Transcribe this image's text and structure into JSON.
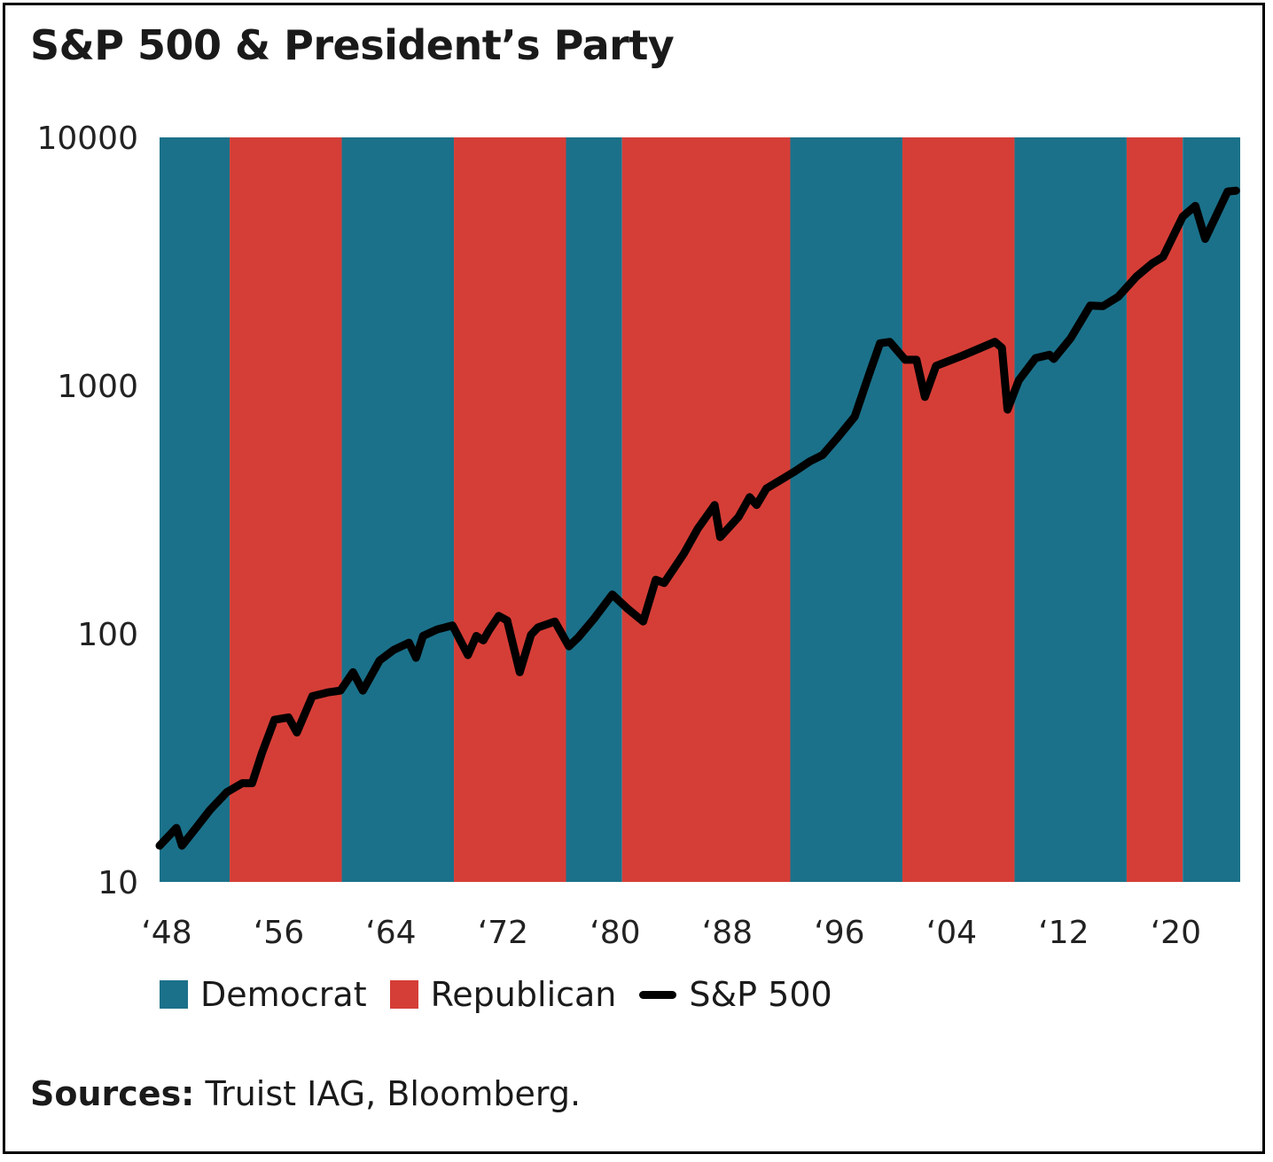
{
  "title": "S&P 500 & President’s Party",
  "sources_label": "Sources:",
  "sources_text": " Truist IAG, Bloomberg.",
  "colors": {
    "democrat": "#1b718a",
    "republican": "#d53e37",
    "line": "#000000"
  },
  "chart_data": {
    "type": "line",
    "title": "S&P 500 & President’s Party",
    "y_scale": "log",
    "ylim": [
      10,
      10000
    ],
    "y_ticks": [
      10,
      100,
      1000,
      10000
    ],
    "y_tick_labels": [
      "10",
      "100",
      "1000",
      "10000"
    ],
    "xlim": [
      1948,
      2025.1
    ],
    "x_ticks": [
      1948,
      1956,
      1964,
      1972,
      1980,
      1988,
      1996,
      2004,
      2012,
      2020
    ],
    "x_tick_labels": [
      "‘48",
      "‘56",
      "‘64",
      "‘72",
      "‘80",
      "‘88",
      "‘96",
      "‘04",
      "‘12",
      "‘20"
    ],
    "legend": [
      "Democrat",
      "Republican",
      "S&P 500"
    ],
    "legend_position": "bottom",
    "party_periods": [
      {
        "party": "Democrat",
        "start": 1948,
        "end": 1953
      },
      {
        "party": "Republican",
        "start": 1953,
        "end": 1961
      },
      {
        "party": "Democrat",
        "start": 1961,
        "end": 1969
      },
      {
        "party": "Republican",
        "start": 1969,
        "end": 1977
      },
      {
        "party": "Democrat",
        "start": 1977,
        "end": 1981
      },
      {
        "party": "Republican",
        "start": 1981,
        "end": 1993
      },
      {
        "party": "Democrat",
        "start": 1993,
        "end": 2001
      },
      {
        "party": "Republican",
        "start": 2001,
        "end": 2009
      },
      {
        "party": "Democrat",
        "start": 2009,
        "end": 2017
      },
      {
        "party": "Republican",
        "start": 2017,
        "end": 2021
      },
      {
        "party": "Democrat",
        "start": 2021,
        "end": 2025.1
      }
    ],
    "series": [
      {
        "name": "S&P 500",
        "x": [
          1948,
          1949.2,
          1949.6,
          1950.6,
          1951.6,
          1952.8,
          1953.9,
          1954.6,
          1955.3,
          1956.2,
          1957.2,
          1957.8,
          1958.9,
          1960.0,
          1960.9,
          1961.8,
          1962.5,
          1963.7,
          1964.7,
          1965.8,
          1966.3,
          1966.8,
          1967.8,
          1968.9,
          1970.0,
          1970.6,
          1971.1,
          1971.5,
          1972.2,
          1972.8,
          1973.7,
          1974.5,
          1975.0,
          1976.2,
          1977.2,
          1977.9,
          1979.0,
          1980.3,
          1981.4,
          1982.5,
          1983.4,
          1984.0,
          1985.4,
          1986.4,
          1987.6,
          1988.0,
          1989.3,
          1990.1,
          1990.6,
          1991.3,
          1993.3,
          1994.4,
          1995.3,
          1996.3,
          1997.6,
          1998.6,
          1999.4,
          2000.1,
          2001.2,
          2002.0,
          2002.6,
          2003.4,
          2005.3,
          2007.6,
          2008.1,
          2008.5,
          2009.3,
          2010.5,
          2011.5,
          2011.8,
          2013.0,
          2014.4,
          2015.3,
          2016.4,
          2017.7,
          2018.8,
          2019.6,
          2021.0,
          2021.9,
          2022.6,
          2024.2,
          2024.8
        ],
        "values": [
          14,
          16.5,
          14,
          16.5,
          19.5,
          23,
          25,
          25,
          33,
          45,
          46,
          40,
          56,
          58,
          59,
          70,
          59,
          78,
          86,
          92,
          80,
          98,
          104,
          108,
          82,
          98,
          94,
          103,
          118,
          113,
          70,
          99,
          106,
          112,
          89,
          97,
          115,
          144,
          126,
          112,
          165,
          160,
          210,
          265,
          330,
          245,
          295,
          355,
          330,
          385,
          450,
          495,
          525,
          610,
          750,
          1100,
          1480,
          1500,
          1270,
          1270,
          900,
          1200,
          1320,
          1500,
          1420,
          800,
          1050,
          1290,
          1330,
          1280,
          1550,
          2100,
          2090,
          2280,
          2750,
          3100,
          3300,
          4800,
          5300,
          3900,
          6050,
          6100
        ]
      }
    ]
  }
}
